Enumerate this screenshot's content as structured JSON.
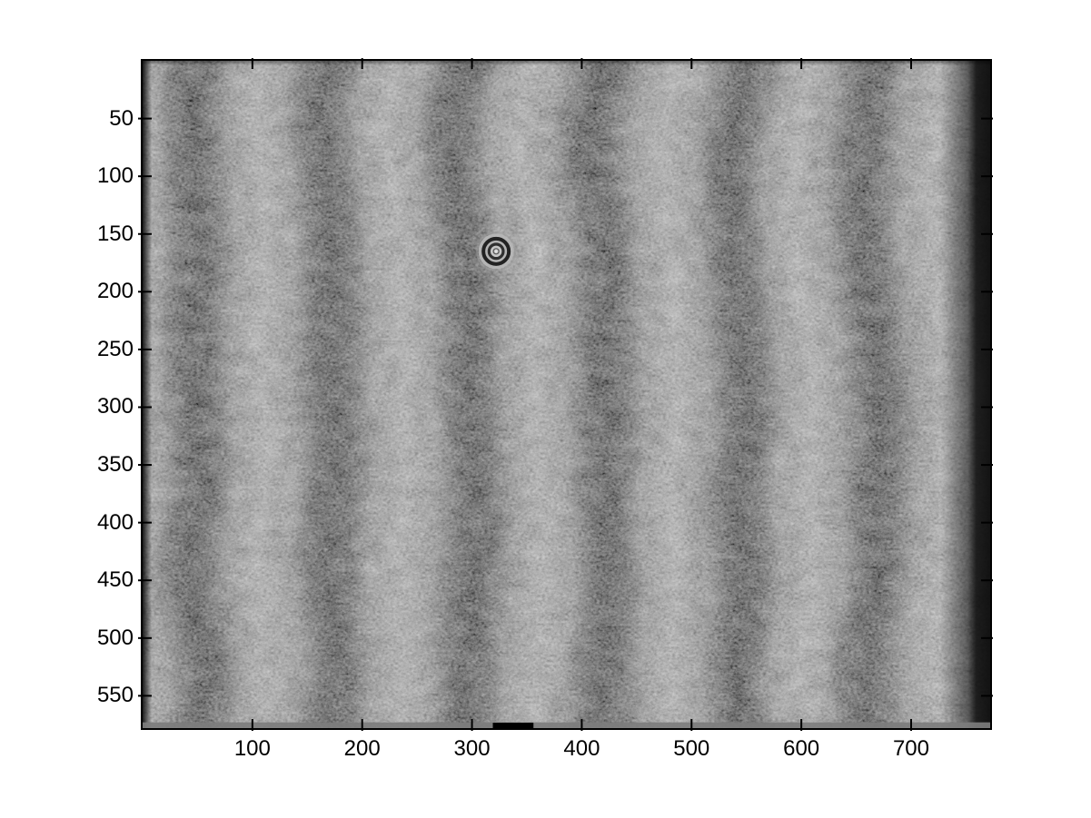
{
  "figure": {
    "kind": "matlab-style-figure",
    "background_color": "#ffffff",
    "axis_color": "#000000",
    "tick_label_color": "#000000",
    "description": "Grayscale interferogram image displayed in plot axes: vertical interference fringes with laser speckle noise, pixel-row/column tick labels, no title, no axis labels"
  },
  "chart_data": {
    "type": "heatmap",
    "subtype": "grayscale-image",
    "title": "",
    "xlabel": "",
    "ylabel": "",
    "x_ticks": [
      100,
      200,
      300,
      400,
      500,
      600,
      700
    ],
    "y_ticks": [
      50,
      100,
      150,
      200,
      250,
      300,
      350,
      400,
      450,
      500,
      550
    ],
    "xlim": [
      0,
      772
    ],
    "ylim": [
      0,
      578
    ],
    "y_axis_direction": "down",
    "grid": false,
    "legend": false,
    "colormap": "gray",
    "box": true,
    "tick_direction": "in",
    "content": {
      "pattern": "vertical interference fringes with speckle noise",
      "fringe_period_data_units": 124,
      "dark_fringe_centers_x": [
        50,
        174,
        298,
        422,
        546,
        670
      ],
      "gray_levels": {
        "light_band": "#a1a1a1",
        "dark_band": "#4d4d4d",
        "edge_dark": "#161616",
        "bottom_row_gray": "#7d7d7d"
      },
      "features": [
        {
          "name": "bullseye-defect",
          "x": 322,
          "y": 165,
          "radius": 16,
          "ring_grays": [
            "#b6b6b6",
            "#232323",
            "#b0b0b0",
            "#303030",
            "#c6c6c6",
            "#e2e2e2"
          ],
          "description": "small concentric diffraction rings (dust bullseye) on the image"
        },
        {
          "name": "black-marker-bottom",
          "x_from": 319,
          "x_to": 356,
          "y_from": 573,
          "y_to": 578,
          "color": "#000000",
          "description": "solid black segment on the bottom gray row of the image"
        },
        {
          "name": "right-edge-dark-column",
          "x_from": 756,
          "x_to": 772,
          "color": "#161616"
        },
        {
          "name": "left-edge-dark-column",
          "x_from": 0,
          "x_to": 8,
          "color": "#1a1a1a"
        },
        {
          "name": "bottom-gray-row",
          "y_from": 573,
          "y_to": 578,
          "color": "#7d7d7d"
        }
      ]
    }
  }
}
